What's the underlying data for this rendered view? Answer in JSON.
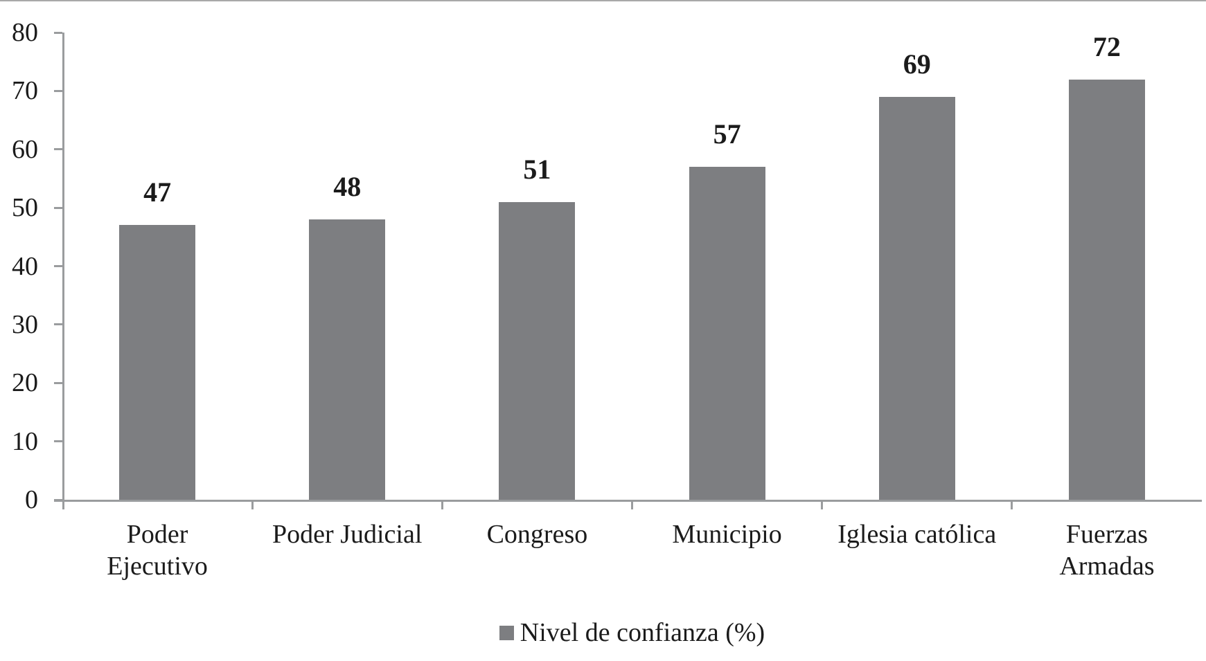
{
  "chart_data": {
    "type": "bar",
    "title": "",
    "categories": [
      "Poder Ejecutivo",
      "Poder Judicial",
      "Congreso",
      "Municipio",
      "Iglesia católica",
      "Fuerzas Armadas"
    ],
    "category_display": [
      "Poder\nEjecutivo",
      "Poder Judicial",
      "Congreso",
      "Municipio",
      "Iglesia católica",
      "Fuerzas\nArmadas"
    ],
    "values": [
      47,
      48,
      51,
      57,
      69,
      72
    ],
    "series": [
      {
        "name": "Nivel de confianza (%)",
        "values": [
          47,
          48,
          51,
          57,
          69,
          72
        ]
      }
    ],
    "xlabel": "",
    "ylabel": "",
    "ylim": [
      0,
      80
    ],
    "yticks": [
      0,
      10,
      20,
      30,
      40,
      50,
      60,
      70,
      80
    ],
    "grid": false,
    "legend_position": "bottom",
    "bar_color": "#7d7e81",
    "axis_color": "#9a9c9e",
    "text_color": "#1b1b1b"
  },
  "legend": {
    "label": "Nivel de confianza (%)"
  }
}
